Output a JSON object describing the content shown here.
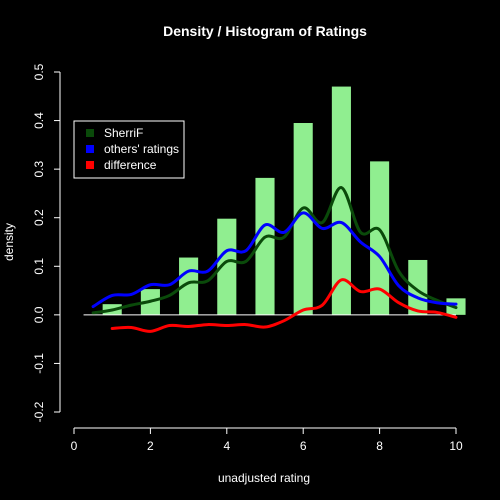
{
  "chart_data": {
    "type": "bar",
    "title": "Density / Histogram of Ratings",
    "xlabel": "unadjusted rating",
    "ylabel": "density",
    "xlim": [
      0,
      10
    ],
    "ylim": [
      -0.2,
      0.5
    ],
    "xticks": [
      "0",
      "2",
      "4",
      "6",
      "8",
      "10"
    ],
    "yticks": [
      "-0.2",
      "-0.1",
      "0.0",
      "0.1",
      "0.2",
      "0.3",
      "0.4",
      "0.5"
    ],
    "bars": {
      "color": "#90ee90",
      "x": [
        1,
        2,
        3,
        4,
        5,
        6,
        7,
        8,
        9,
        10
      ],
      "values": [
        0.022,
        0.053,
        0.118,
        0.198,
        0.282,
        0.395,
        0.47,
        0.316,
        0.113,
        0.034
      ]
    },
    "series": [
      {
        "name": "SherriF",
        "color": "#0a4a0a",
        "x": [
          0.5,
          1,
          1.5,
          2,
          2.5,
          3,
          3.5,
          4,
          4.5,
          5,
          5.5,
          6,
          6.5,
          7,
          7.5,
          8,
          8.5,
          9,
          9.5,
          10
        ],
        "y": [
          0.004,
          0.01,
          0.02,
          0.028,
          0.04,
          0.066,
          0.07,
          0.11,
          0.11,
          0.16,
          0.16,
          0.22,
          0.19,
          0.262,
          0.17,
          0.175,
          0.09,
          0.05,
          0.03,
          0.015
        ]
      },
      {
        "name": "others' ratings",
        "color": "#0000ff",
        "x": [
          0.5,
          1,
          1.5,
          2,
          2.5,
          3,
          3.5,
          4,
          4.5,
          5,
          5.5,
          6,
          6.5,
          7,
          7.5,
          8,
          8.5,
          9,
          9.5,
          10
        ],
        "y": [
          0.017,
          0.04,
          0.042,
          0.062,
          0.062,
          0.09,
          0.09,
          0.132,
          0.132,
          0.185,
          0.17,
          0.21,
          0.178,
          0.19,
          0.15,
          0.12,
          0.06,
          0.035,
          0.025,
          0.022
        ]
      },
      {
        "name": "difference",
        "color": "#ff0000",
        "x": [
          1,
          1.5,
          2,
          2.5,
          3,
          3.5,
          4,
          4.5,
          5,
          5.5,
          6,
          6.5,
          7,
          7.5,
          8,
          8.5,
          9,
          9.5,
          10
        ],
        "y": [
          -0.028,
          -0.026,
          -0.034,
          -0.022,
          -0.024,
          -0.02,
          -0.022,
          -0.02,
          -0.025,
          -0.012,
          0.01,
          0.02,
          0.072,
          0.048,
          0.053,
          0.025,
          0.008,
          0.005,
          -0.005
        ]
      }
    ],
    "legend": "top-left"
  }
}
